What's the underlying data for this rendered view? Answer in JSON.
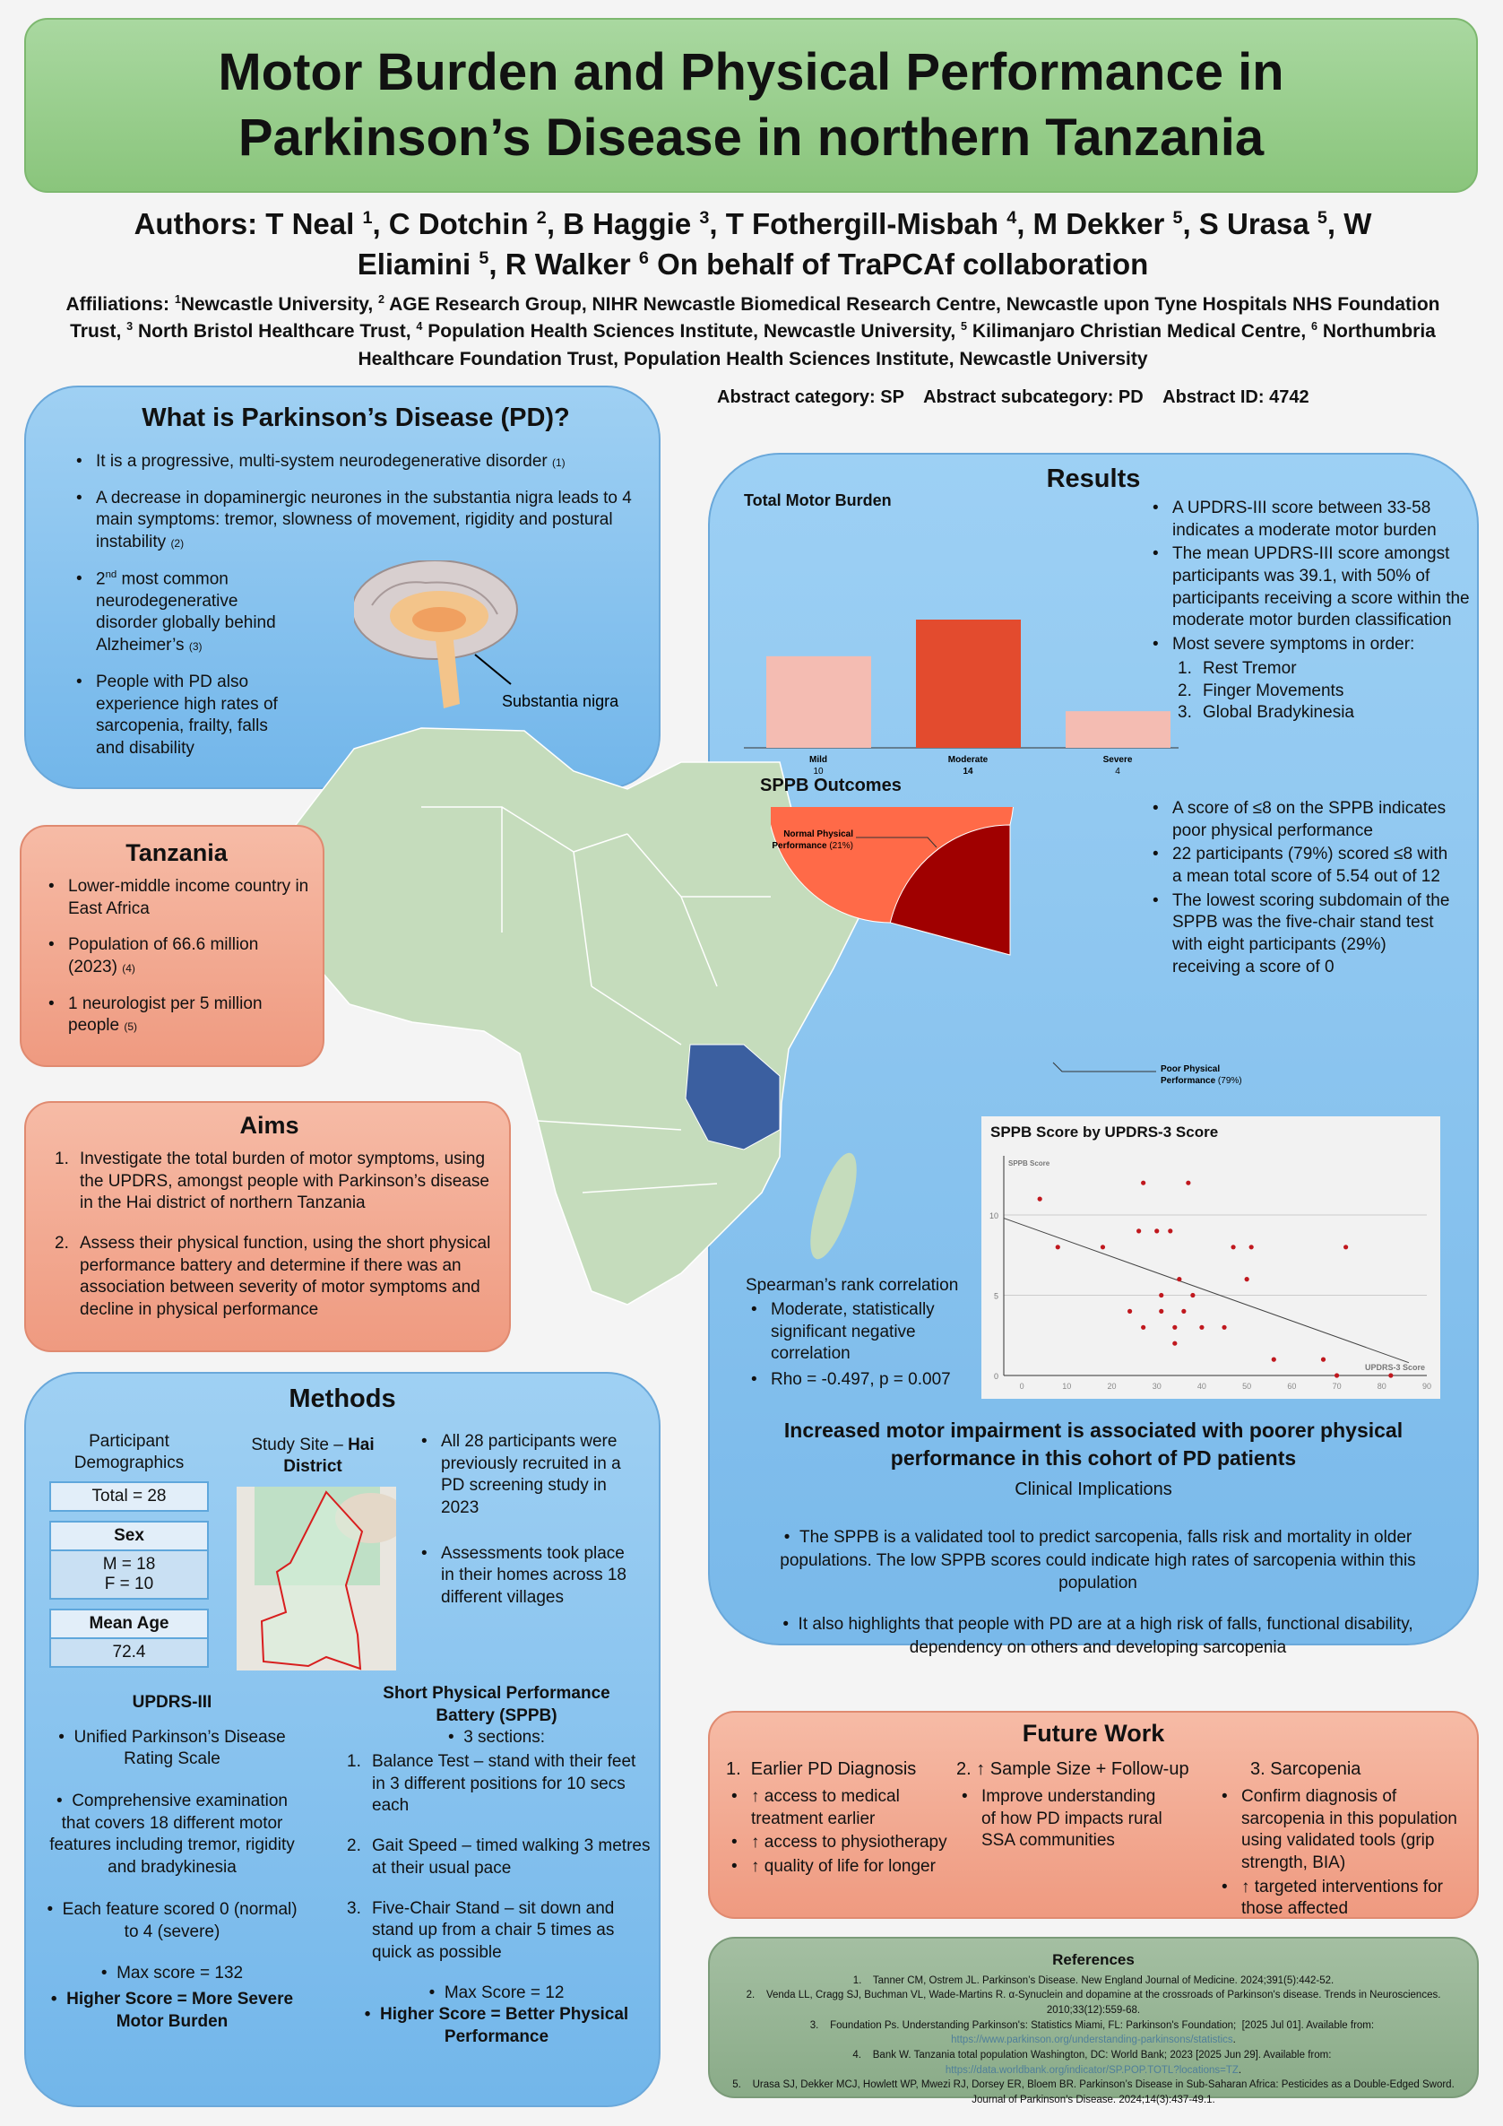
{
  "title": "Motor Burden and Physical Performance in Parkinson’s Disease in northern Tanzania",
  "authors": {
    "prefix": "Authors: ",
    "list": [
      {
        "name": "T Neal ",
        "sup": "1"
      },
      {
        "name": ", C Dotchin ",
        "sup": "2"
      },
      {
        "name": ", B Haggie ",
        "sup": "3"
      },
      {
        "name": ", T Fothergill-Misbah ",
        "sup": "4"
      },
      {
        "name": ", M Dekker ",
        "sup": "5"
      },
      {
        "name": ", S Urasa ",
        "sup": "5"
      },
      {
        "name": ", W Eliamini ",
        "sup": "5"
      },
      {
        "name": ", R Walker ",
        "sup": "6"
      }
    ],
    "suffix": " On behalf of TraPCAf collaboration"
  },
  "affiliations": {
    "prefix": "Affiliations: ",
    "list": [
      {
        "sup": "1",
        "text": "Newcastle University, "
      },
      {
        "sup": "2",
        "text": " AGE Research Group, NIHR Newcastle Biomedical Research Centre, Newcastle upon Tyne Hospitals NHS Foundation Trust, "
      },
      {
        "sup": "3",
        "text": " North Bristol Healthcare Trust, "
      },
      {
        "sup": "4",
        "text": " Population Health Sciences Institute, Newcastle University, "
      },
      {
        "sup": "5",
        "text": " Kilimanjaro Christian Medical Centre, "
      },
      {
        "sup": "6",
        "text": " Northumbria Healthcare Foundation Trust, Population Health Sciences Institute, Newcastle University"
      }
    ]
  },
  "abstract_line": "Abstract category: SP    Abstract subcategory: PD    Abstract ID: 4742",
  "pd": {
    "heading": "What is Parkinson’s Disease (PD)?",
    "b1": "It is a progressive, multi-system neurodegenerative disorder",
    "r1": "(1)",
    "b2": "A decrease in dopaminergic neurones in the substantia nigra leads to 4 main symptoms: tremor, slowness of movement, rigidity and postural instability",
    "r2": "(2)",
    "b3a": "2",
    "b3sup": "nd",
    "b3b": " most common neurodegenerative disorder globally behind Alzheimer’s",
    "r3": "(3)",
    "b4": "People with PD also experience high rates of sarcopenia, frailty, falls and disability",
    "brain_label": "Substantia nigra"
  },
  "tanzania": {
    "heading": "Tanzania",
    "b1": "Lower-middle income country in East Africa",
    "b2": "Population of 66.6 million (2023)",
    "r2": "(4)",
    "b3": "1 neurologist per 5 million people",
    "r3": "(5)"
  },
  "aims": {
    "heading": "Aims",
    "items": [
      {
        "n": "1.",
        "text": "Investigate the total burden of motor symptoms, using the UPDRS, amongst people with Parkinson’s disease in the Hai district of northern Tanzania"
      },
      {
        "n": "2.",
        "text": "Assess their physical function, using the short physical performance battery and determine if there was an association between severity of motor symptoms and decline in physical performance"
      }
    ]
  },
  "methods": {
    "heading": "Methods",
    "demo_title": "Participant Demographics",
    "total": "Total = 28",
    "sex_h": "Sex",
    "sex_m": "M = 18",
    "sex_f": "F = 10",
    "age_h": "Mean Age",
    "age": "72.4",
    "site_a": "Study Site – ",
    "site_b": "Hai District",
    "b1": "All 28 participants were previously recruited in a PD screening study in 2023",
    "b2": "Assessments took place in their homes across 18 different villages",
    "updrs_h": "UPDRS-III",
    "u1": "Unified Parkinson’s Disease Rating Scale",
    "u2": "Comprehensive examination that covers 18 different motor features including tremor, rigidity and bradykinesia",
    "u3": "Each feature scored 0 (normal) to 4 (severe)",
    "u4": "Max score = 132",
    "u5": "Higher Score = More Severe Motor Burden",
    "sppb_h": "Short Physical Performance Battery (SPPB)",
    "s0": "3 sections:",
    "s_items": [
      {
        "n": "1.",
        "text": "Balance Test – stand with their feet in 3 different positions for 10 secs each"
      },
      {
        "n": "2.",
        "text": "Gait Speed – timed walking 3 metres at their usual pace"
      },
      {
        "n": "3.",
        "text": "Five-Chair Stand – sit down and stand up from a chair 5 times as quick as possible"
      }
    ],
    "s4": "Max Score = 12",
    "s5": "Higher Score = Better Physical Performance"
  },
  "results": {
    "heading": "Results",
    "r1": "A UPDRS-III score between 33-58 indicates a moderate motor burden",
    "r2": "The mean UPDRS-III score amongst participants was 39.1, with 50% of participants receiving a score within the moderate motor burden classification",
    "r3": "Most severe symptoms in order:",
    "severe": [
      "Rest Tremor",
      "Finger Movements",
      "Global Bradykinesia"
    ],
    "p1": "A score of ≤8 on the SPPB indicates poor physical performance",
    "p2": " 22 participants (79%) scored ≤8 with a mean total score of 5.54 out of 12",
    "p3": "The lowest scoring subdomain of the SPPB was the five-chair stand test with eight participants (29%) receiving a score of 0",
    "spearman": "Spearman’s rank correlation",
    "sp1": "Moderate, statistically significant negative correlation",
    "sp2": "Rho = -0.497, p = 0.007",
    "conclusion": "Increased motor impairment is associated with poorer physical performance in this cohort of PD patients",
    "clin_h": "Clinical Implications",
    "c1": "The SPPB is a validated tool to predict sarcopenia, falls risk and mortality in older populations. The low SPPB scores could indicate high rates of sarcopenia within this population",
    "c2": "It also highlights that people with PD are at a high risk of falls, functional disability, dependency on others and developing sarcopenia"
  },
  "chart_data": [
    {
      "type": "bar",
      "title": "Total Motor Burden",
      "categories": [
        "Mild",
        "Moderate",
        "Severe"
      ],
      "values": [
        10,
        14,
        4
      ],
      "colors": [
        "#f4bcb2",
        "#e34b2e",
        "#f4bcb2"
      ]
    },
    {
      "type": "pie",
      "title": "SPPB Outcomes",
      "slices": [
        {
          "label": "Normal Physical Performance",
          "pct_label": "(21%)",
          "value": 21,
          "color": "#a00000"
        },
        {
          "label": "Poor Physical Performance",
          "pct_label": "(79%)",
          "value": 79,
          "color": "#ff6a48"
        }
      ]
    },
    {
      "type": "scatter",
      "title": "SPPB Score by UPDRS-3 Score",
      "xlabel": "UPDRS-3 Score",
      "ylabel": "SPPB Score",
      "xlim": [
        -4,
        90
      ],
      "ylim": [
        0,
        13
      ],
      "xticks": [
        0,
        10,
        20,
        30,
        40,
        50,
        60,
        70,
        80,
        90
      ],
      "yticks": [
        0,
        5,
        10
      ],
      "grid": true,
      "point_color": "#c0181e",
      "points": [
        [
          4,
          11
        ],
        [
          8,
          8
        ],
        [
          18,
          8
        ],
        [
          24,
          4
        ],
        [
          26,
          9
        ],
        [
          27,
          12
        ],
        [
          27,
          3
        ],
        [
          30,
          9
        ],
        [
          31,
          5
        ],
        [
          31,
          4
        ],
        [
          33,
          9
        ],
        [
          34,
          3
        ],
        [
          34,
          2
        ],
        [
          35,
          6
        ],
        [
          36,
          4
        ],
        [
          37,
          12
        ],
        [
          38,
          5
        ],
        [
          40,
          3
        ],
        [
          45,
          3
        ],
        [
          47,
          8
        ],
        [
          50,
          6
        ],
        [
          51,
          8
        ],
        [
          56,
          1
        ],
        [
          67,
          1
        ],
        [
          70,
          0
        ],
        [
          72,
          8
        ],
        [
          82,
          0
        ]
      ],
      "trendline": [
        [
          -4,
          9.8
        ],
        [
          86,
          0.8
        ]
      ]
    }
  ],
  "future": {
    "heading": "Future Work",
    "c1h": "1.  Earlier PD Diagnosis",
    "c1": [
      "↑ access to medical treatment earlier",
      "↑ access to physiotherapy",
      "↑ quality of life for longer"
    ],
    "c2h": "2. ↑ Sample Size + Follow-up",
    "c2": [
      "Improve understanding of how PD impacts rural SSA communities"
    ],
    "c3h": "3. Sarcopenia",
    "c3": [
      "Confirm diagnosis of sarcopenia in this population using validated tools (grip strength, BIA)",
      "↑ targeted interventions for those affected"
    ]
  },
  "references": {
    "heading": "References",
    "items": [
      {
        "text": "1.    Tanner CM, Ostrem JL. Parkinson’s Disease. New England Journal of Medicine. 2024;391(5):442-52."
      },
      {
        "text": "2.    Venda LL, Cragg SJ, Buchman VL, Wade-Martins R. α-Synuclein and dopamine at the crossroads of Parkinson's disease. Trends in Neurosciences. 2010;33(12):559-68."
      },
      {
        "text": "3.    Foundation Ps. Understanding Parkinson's: Statistics Miami, FL: Parkinson's Foundation;  [2025 Jul 01]. Available from: ",
        "link": "https://www.parkinson.org/understanding-parkinsons/statistics"
      },
      {
        "text": "4.    Bank W. Tanzania total population Washington, DC: World Bank; 2023 [2025 Jun 29]. Available from: ",
        "link": "https://data.worldbank.org/indicator/SP.POP.TOTL?locations=TZ"
      },
      {
        "text": "5.    Urasa SJ, Dekker MCJ, Howlett WP, Mwezi RJ, Dorsey ER, Bloem BR. Parkinson’s Disease in Sub-Saharan Africa: Pesticides as a Double-Edged Sword. Journal of Parkinson’s Disease. 2024;14(3):437-49.1."
      }
    ]
  },
  "colors": {
    "title_bg": "#93cc86",
    "blue_box": "#8cc6f0",
    "salmon_box": "#f2a88f",
    "ref_box": "#93b392",
    "africa": "#c5dcbc",
    "tanzania": "#3b5fa0"
  }
}
